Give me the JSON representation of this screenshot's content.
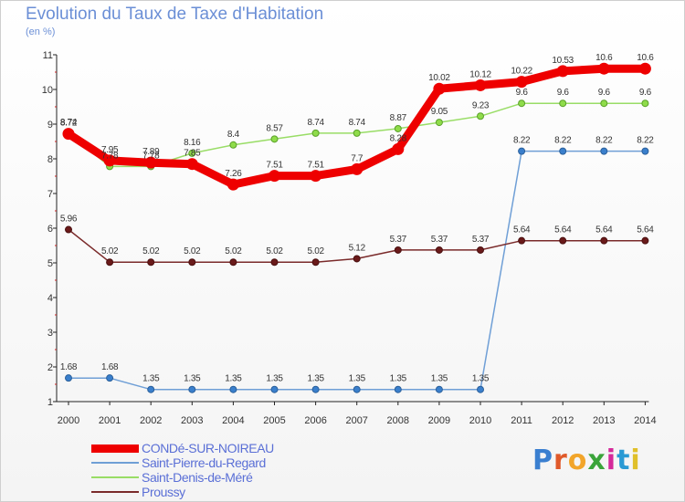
{
  "title": "Evolution du Taux de Taxe d'Habitation",
  "subtitle": "(en %)",
  "logo": {
    "text": "Proxiti",
    "letter_colors": [
      "#3a7fd0",
      "#e05a2a",
      "#f2a52a",
      "#3aa43a",
      "#d42a9a",
      "#2a9ad4",
      "#e0c02a"
    ]
  },
  "chart_data": {
    "type": "line",
    "title": "Evolution du Taux de Taxe d'Habitation",
    "ylabel": "(en %)",
    "xlabel": "",
    "ylim": [
      1,
      11
    ],
    "yticks": [
      1,
      2,
      3,
      4,
      5,
      6,
      7,
      8,
      9,
      10,
      11
    ],
    "grid": false,
    "legend_position": "bottom-left",
    "categories": [
      "2000",
      "2001",
      "2002",
      "2003",
      "2004",
      "2005",
      "2006",
      "2007",
      "2008",
      "2009",
      "2010",
      "2011",
      "2012",
      "2013",
      "2014"
    ],
    "series": [
      {
        "name": "CONDé-SUR-NOIREAU",
        "color": "#ee0000",
        "values": [
          8.72,
          7.95,
          7.89,
          7.85,
          7.26,
          7.51,
          7.51,
          7.7,
          8.28,
          10.02,
          10.12,
          10.22,
          10.53,
          10.6,
          10.6
        ],
        "labels": [
          "8.72",
          "7.95",
          "7.89",
          "7.85",
          "7.26",
          "7.51",
          "7.51",
          "7.7",
          "8.28",
          "10.02",
          "10.12",
          "10.22",
          "10.53",
          "10.6",
          "10.6"
        ]
      },
      {
        "name": "Saint-Pierre-du-Regard",
        "color": "#6f9fd6",
        "values": [
          1.68,
          1.68,
          1.35,
          1.35,
          1.35,
          1.35,
          1.35,
          1.35,
          1.35,
          1.35,
          1.35,
          8.22,
          8.22,
          8.22,
          8.22
        ],
        "labels": [
          "1.68",
          "1.68",
          "1.35",
          "1.35",
          "1.35",
          "1.35",
          "1.35",
          "1.35",
          "1.35",
          "1.35",
          "1.35",
          "8.22",
          "8.22",
          "8.22",
          "8.22"
        ]
      },
      {
        "name": "Saint-Denis-de-Méré",
        "color": "#99dd66",
        "values": [
          8.74,
          7.78,
          7.78,
          8.16,
          8.4,
          8.57,
          8.74,
          8.74,
          8.87,
          9.05,
          9.23,
          9.6,
          9.6,
          9.6,
          9.6
        ],
        "labels": [
          "8.74",
          "7.78",
          "7.78",
          "8.16",
          "8.4",
          "8.57",
          "8.74",
          "8.74",
          "8.87",
          "9.05",
          "9.23",
          "9.6",
          "9.6",
          "9.6",
          "9.6"
        ]
      },
      {
        "name": "Proussy",
        "color": "#7a2a2a",
        "values": [
          5.96,
          5.02,
          5.02,
          5.02,
          5.02,
          5.02,
          5.02,
          5.12,
          5.37,
          5.37,
          5.37,
          5.64,
          5.64,
          5.64,
          5.64
        ],
        "labels": [
          "5.96",
          "5.02",
          "5.02",
          "5.02",
          "5.02",
          "5.02",
          "5.02",
          "5.12",
          "5.37",
          "5.37",
          "5.37",
          "5.64",
          "5.64",
          "5.64",
          "5.64"
        ]
      }
    ]
  }
}
